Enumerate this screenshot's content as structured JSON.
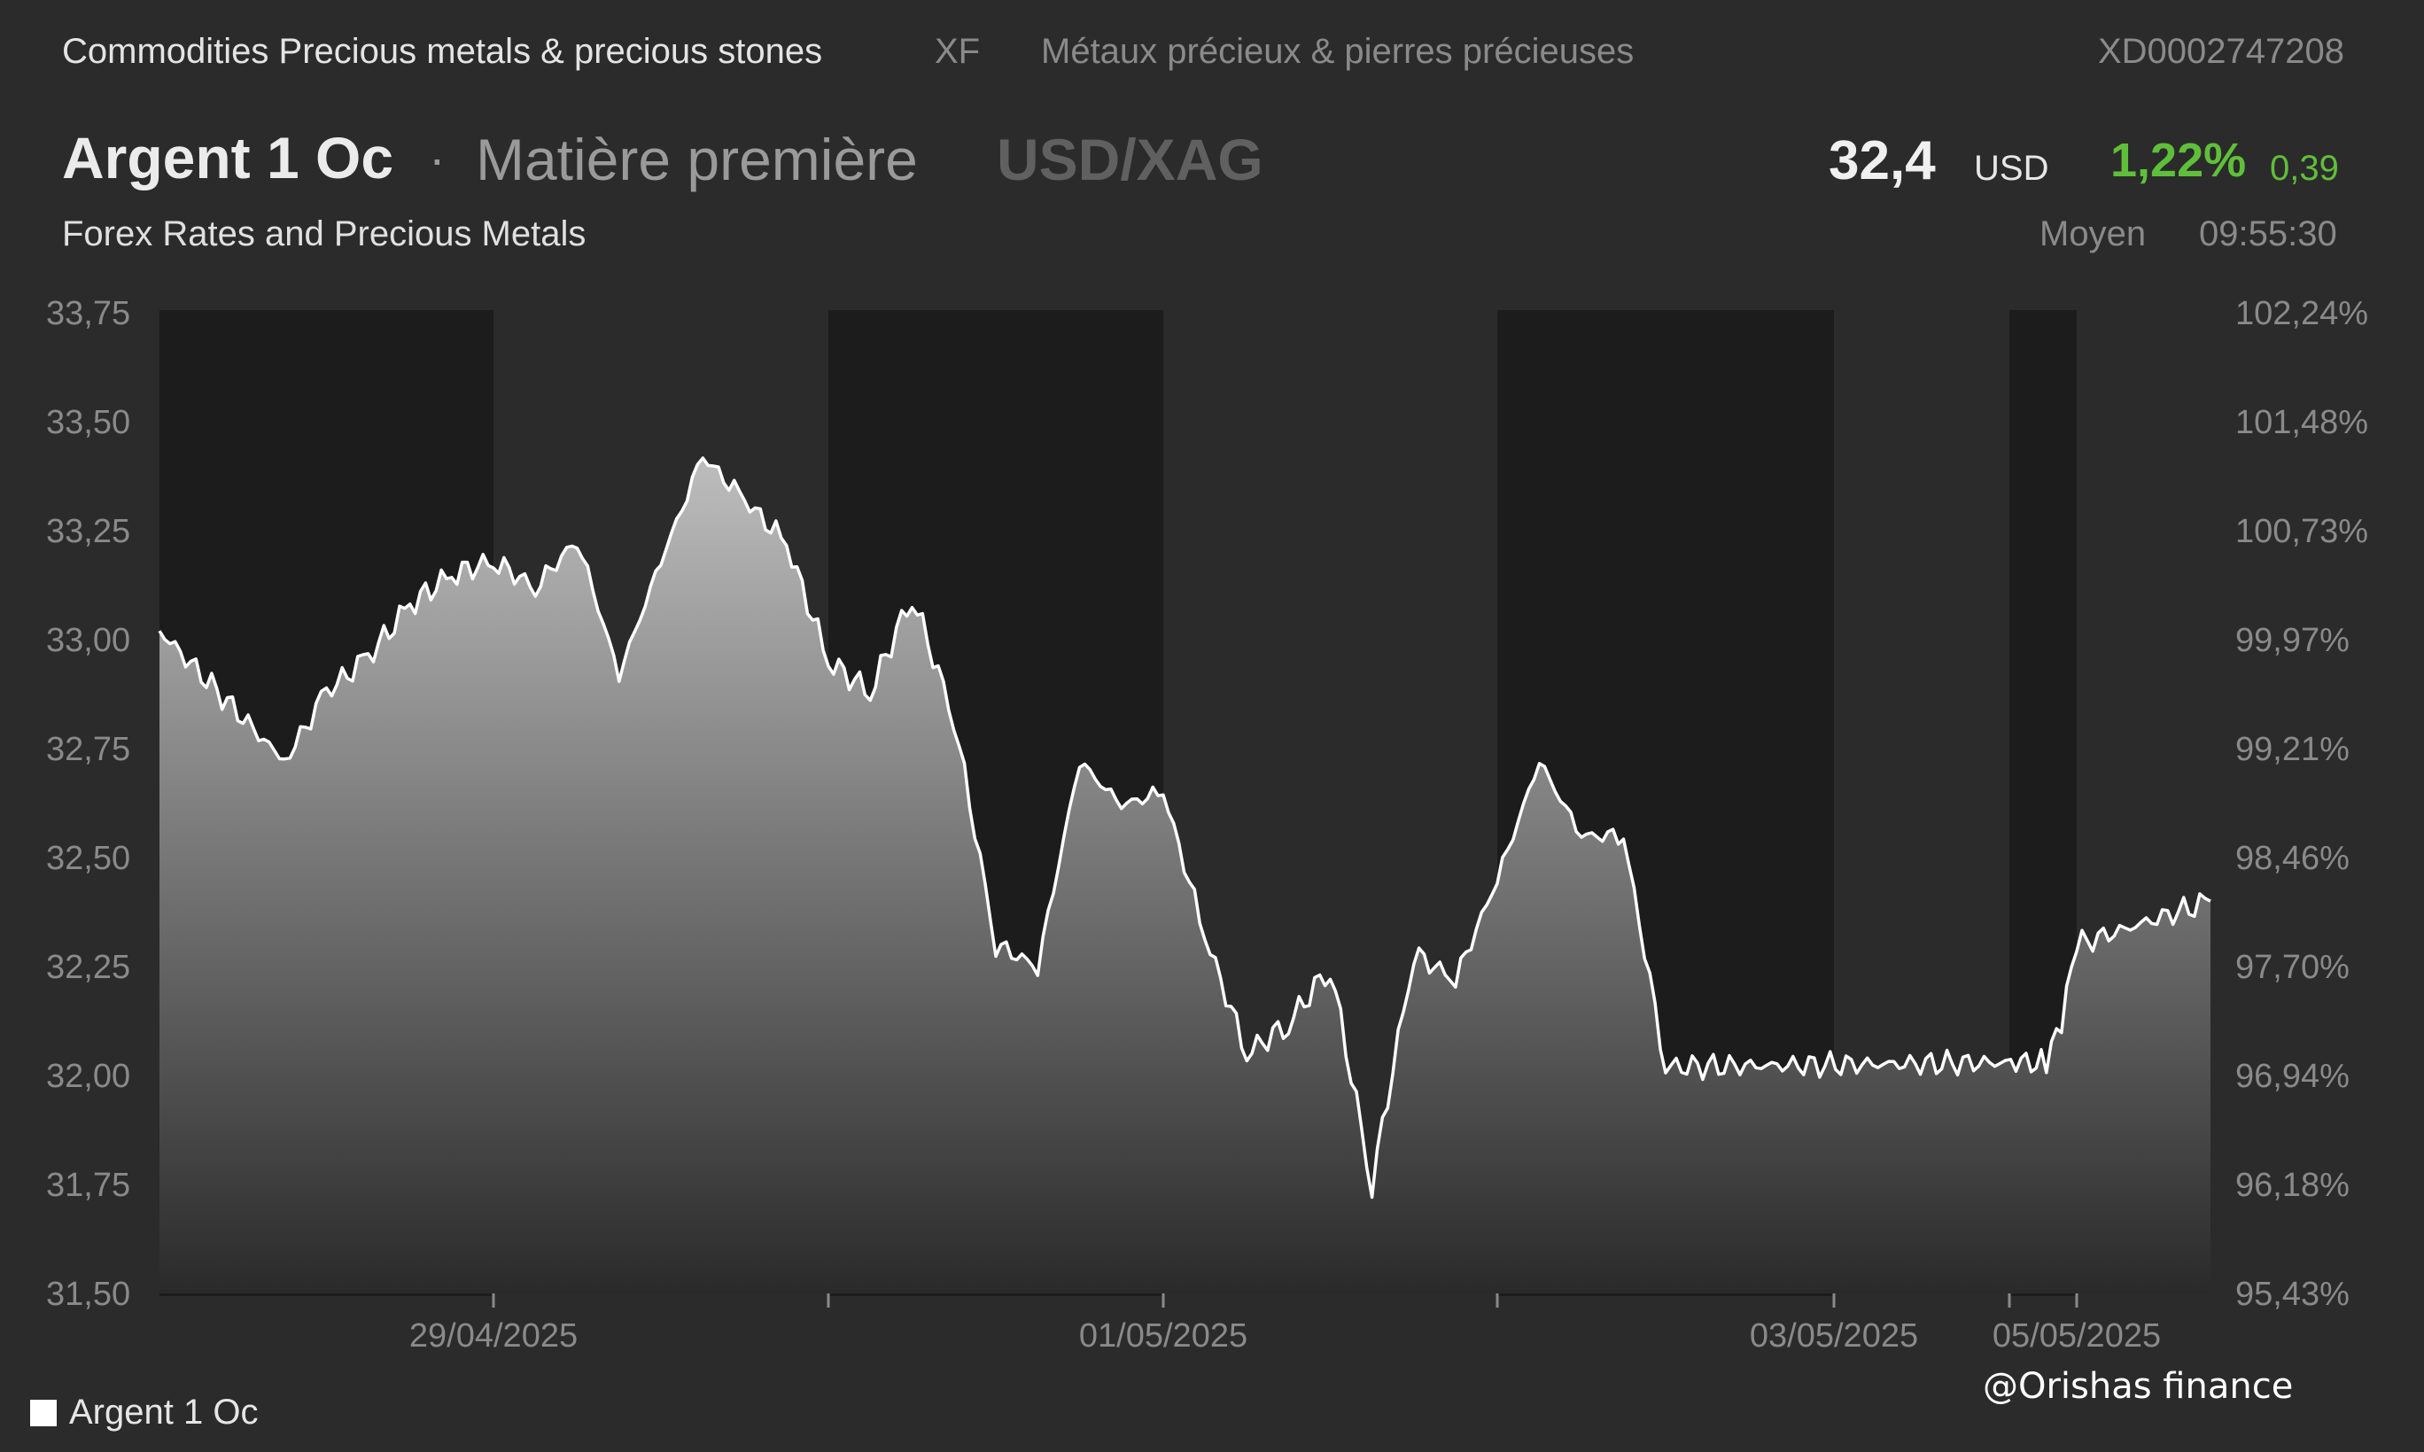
{
  "header": {
    "category": "Commodities Precious metals & precious stones",
    "code": "XF",
    "category_fr": "Métaux précieux & pierres précieuses",
    "isin": "XD0002747208",
    "title": "Argent 1 Oc",
    "separator": "·",
    "asset_type": "Matière première",
    "pair": "USD/XAG",
    "subtitle": "Forex Rates and Precious Metals",
    "price": "32,4",
    "currency": "USD",
    "change_pct": "1,22%",
    "change_abs": "0,39",
    "price_type": "Moyen",
    "time": "09:55:30"
  },
  "colors": {
    "background": "#2b2b2b",
    "session_band": "#1c1c1c",
    "line": "#ffffff",
    "positive": "#5fbf3a"
  },
  "legend": {
    "label": "Argent 1 Oc"
  },
  "credit": "@Orishas finance",
  "chart_data": {
    "type": "area",
    "x": [
      "2025-04-28 18:00",
      "2025-04-28 21:00",
      "2025-04-29 00:00",
      "2025-04-29 03:00",
      "2025-04-29 06:00",
      "2025-04-29 09:00",
      "2025-04-29 12:00",
      "2025-04-29 15:00",
      "2025-04-29 18:00",
      "2025-04-29 21:00",
      "2025-04-30 00:00",
      "2025-04-30 03:00",
      "2025-04-30 06:00",
      "2025-04-30 09:00",
      "2025-04-30 12:00",
      "2025-04-30 15:00",
      "2025-04-30 18:00",
      "2025-04-30 21:00",
      "2025-05-01 00:00",
      "2025-05-01 03:00",
      "2025-05-01 06:00",
      "2025-05-01 09:00",
      "2025-05-01 12:00",
      "2025-05-01 15:00",
      "2025-05-01 18:00",
      "2025-05-01 21:00",
      "2025-05-02 00:00",
      "2025-05-02 03:00",
      "2025-05-02 06:00",
      "2025-05-02 09:00",
      "2025-05-02 12:00",
      "2025-05-02 15:00",
      "2025-05-02 18:00",
      "2025-05-02 21:00",
      "2025-05-03 00:00",
      "2025-05-05 00:00",
      "2025-05-05 06:00",
      "2025-05-05 09:00",
      "2025-05-05 12:00",
      "2025-05-05 15:00"
    ],
    "series": [
      {
        "name": "Argent 1 Oc",
        "values": [
          33.02,
          32.72,
          32.88,
          32.96,
          33.08,
          33.15,
          33.18,
          33.12,
          33.23,
          32.92,
          33.18,
          33.42,
          33.32,
          33.22,
          32.95,
          32.88,
          33.1,
          32.82,
          32.3,
          32.25,
          32.72,
          32.62,
          32.65,
          32.32,
          32.05,
          32.12,
          32.25,
          31.75,
          32.28,
          32.22,
          32.45,
          32.72,
          32.55,
          32.55,
          32.02,
          32.03,
          32.03,
          32.12,
          32.3,
          32.4
        ]
      }
    ],
    "y_ticks": [
      "33,75",
      "33,50",
      "33,25",
      "33,00",
      "32,75",
      "32,50",
      "32,25",
      "32,00",
      "31,75",
      "31,50"
    ],
    "y2_ticks": [
      "102,24%",
      "101,48%",
      "100,73%",
      "99,97%",
      "99,21%",
      "98,46%",
      "97,70%",
      "96,94%",
      "96,18%",
      "95,43%"
    ],
    "x_ticks": [
      "29/04/2025",
      "01/05/2025",
      "03/05/2025",
      "05/05/2025"
    ],
    "ylim": [
      31.5,
      33.75
    ],
    "y2lim": [
      95.43,
      102.24
    ],
    "grid": false,
    "legend_position": "bottom-left"
  }
}
